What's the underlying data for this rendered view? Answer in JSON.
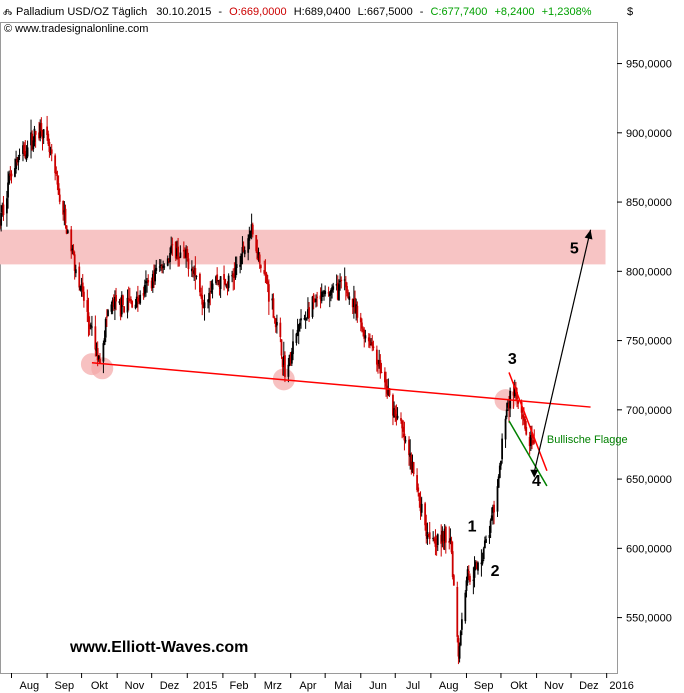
{
  "header": {
    "instrument": "Palladium USD/OZ Täglich",
    "date": "30.10.2015",
    "open": "O:669,0000",
    "high": "H:689,0400",
    "low": "L:667,5000",
    "close": "C:677,7400",
    "change": "+8,2400",
    "change_pct": "+1,2308%",
    "source": "© www.tradesignalonline.com",
    "currency": "$"
  },
  "watermark": "www.Elliott-Waves.com",
  "colors": {
    "up": "#000000",
    "down": "#cc0000",
    "resistance_zone": "#f7c4c4",
    "trendline": "#ff0000",
    "flag_lower": "#008000",
    "flag_label": "#008000",
    "open_text": "#cc0000",
    "close_text": "#00a000"
  },
  "chart_data": {
    "type": "candlestick",
    "x_ticks": [
      "Aug",
      "Sep",
      "Okt",
      "Nov",
      "Dez",
      "2015",
      "Feb",
      "Mrz",
      "Apr",
      "Mai",
      "Jun",
      "Jul",
      "Aug",
      "Sep",
      "Okt",
      "Nov",
      "Dez",
      "2016"
    ],
    "y_ticks": [
      "950,0000",
      "900,0000",
      "850,0000",
      "800,0000",
      "750,0000",
      "700,0000",
      "650,0000",
      "600,0000",
      "550,0000"
    ],
    "y_values": [
      950,
      900,
      850,
      800,
      750,
      700,
      650,
      600,
      550
    ],
    "ylim": [
      510,
      980
    ],
    "x_range": [
      "2014-07-22",
      "2016-01-10"
    ],
    "price_path": [
      [
        "2014-07-22",
        835
      ],
      [
        "2014-08-01",
        875
      ],
      [
        "2014-08-15",
        890
      ],
      [
        "2014-08-27",
        905
      ],
      [
        "2014-09-05",
        880
      ],
      [
        "2014-09-18",
        830
      ],
      [
        "2014-09-30",
        790
      ],
      [
        "2014-10-08",
        760
      ],
      [
        "2014-10-16",
        735
      ],
      [
        "2014-10-25",
        775
      ],
      [
        "2014-11-05",
        775
      ],
      [
        "2014-11-20",
        780
      ],
      [
        "2014-12-05",
        800
      ],
      [
        "2014-12-20",
        815
      ],
      [
        "2015-01-05",
        805
      ],
      [
        "2015-01-15",
        780
      ],
      [
        "2015-01-25",
        795
      ],
      [
        "2015-02-05",
        790
      ],
      [
        "2015-02-15",
        805
      ],
      [
        "2015-02-25",
        830
      ],
      [
        "2015-03-05",
        810
      ],
      [
        "2015-03-15",
        780
      ],
      [
        "2015-03-28",
        725
      ],
      [
        "2015-04-08",
        760
      ],
      [
        "2015-04-20",
        775
      ],
      [
        "2015-05-05",
        785
      ],
      [
        "2015-05-18",
        790
      ],
      [
        "2015-06-01",
        760
      ],
      [
        "2015-06-12",
        745
      ],
      [
        "2015-06-25",
        710
      ],
      [
        "2015-07-05",
        690
      ],
      [
        "2015-07-15",
        660
      ],
      [
        "2015-07-28",
        615
      ],
      [
        "2015-08-08",
        605
      ],
      [
        "2015-08-18",
        610
      ],
      [
        "2015-08-25",
        525
      ],
      [
        "2015-09-01",
        580
      ],
      [
        "2015-09-10",
        585
      ],
      [
        "2015-09-20",
        610
      ],
      [
        "2015-09-28",
        640
      ],
      [
        "2015-10-05",
        700
      ],
      [
        "2015-10-12",
        715
      ],
      [
        "2015-10-22",
        685
      ],
      [
        "2015-10-30",
        670
      ]
    ],
    "resistance_zone": {
      "from": "2014-07-22",
      "to": "2015-12-31",
      "low": 805,
      "high": 830
    },
    "trendline": {
      "from": [
        "2014-10-10",
        734
      ],
      "to": [
        "2015-12-18",
        702
      ]
    },
    "touch_points": [
      [
        "2014-10-10",
        733
      ],
      [
        "2014-10-19",
        730
      ],
      [
        "2015-03-26",
        722
      ],
      [
        "2015-10-05",
        707
      ]
    ],
    "flag": {
      "upper": {
        "from": [
          "2015-10-08",
          727
        ],
        "to": [
          "2015-11-10",
          656
        ]
      },
      "lower": {
        "from": [
          "2015-10-08",
          692
        ],
        "to": [
          "2015-11-10",
          645
        ]
      }
    },
    "projection": {
      "from": [
        "2015-10-30",
        655
      ],
      "to": [
        "2015-12-18",
        830
      ]
    },
    "annotations": [
      {
        "text": "1",
        "x": "2015-09-02",
        "y": 612
      },
      {
        "text": "2",
        "x": "2015-09-22",
        "y": 580
      },
      {
        "text": "3",
        "x": "2015-10-07",
        "y": 733
      },
      {
        "text": "4",
        "x": "2015-10-28",
        "y": 645
      },
      {
        "text": "5",
        "x": "2015-11-30",
        "y": 813
      },
      {
        "text": "Bullische Flagge",
        "x": "2015-11-10",
        "y": 676
      }
    ]
  }
}
